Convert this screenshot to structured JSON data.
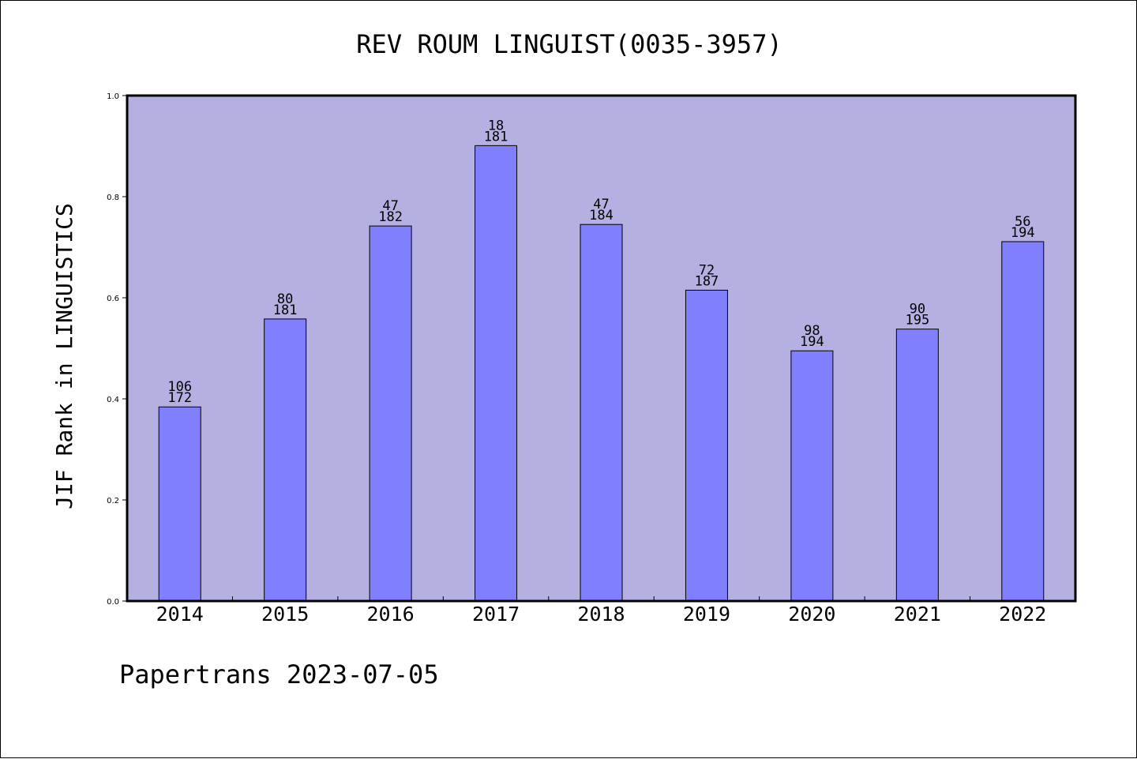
{
  "footer": "Papertrans 2023-07-05",
  "colors": {
    "plot_background": "#b5b0e2",
    "bar_fill": "#8080ff",
    "bar_stroke": "#000000"
  },
  "chart_data": {
    "type": "bar",
    "title": "REV ROUM LINGUIST(0035-3957)",
    "xlabel": "",
    "ylabel": "JIF Rank in LINGUISTICS",
    "ylim": [
      0,
      1.0
    ],
    "yticks": [
      "0.0",
      "0.2",
      "0.4",
      "0.6",
      "0.8",
      "1.0"
    ],
    "grid": false,
    "categories": [
      "2014",
      "2015",
      "2016",
      "2017",
      "2018",
      "2019",
      "2020",
      "2021",
      "2022"
    ],
    "values": [
      0.384,
      0.558,
      0.742,
      0.901,
      0.745,
      0.615,
      0.495,
      0.538,
      0.711
    ],
    "rank_labels": [
      "106",
      "80",
      "47",
      "18",
      "47",
      "72",
      "98",
      "90",
      "56"
    ],
    "total_labels": [
      "172",
      "181",
      "182",
      "181",
      "184",
      "187",
      "194",
      "195",
      "194"
    ]
  }
}
